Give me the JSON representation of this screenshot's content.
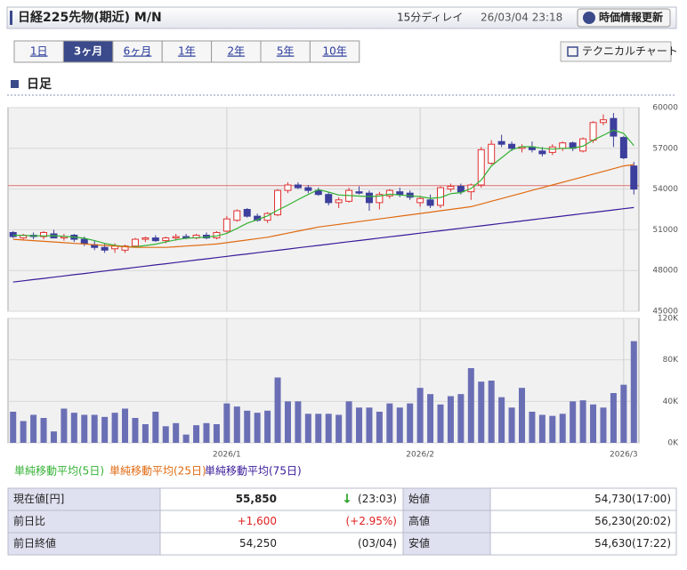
{
  "header": {
    "title": "日経225先物(期近) M/N",
    "delay": "15分ディレイ",
    "timestamp": "26/03/04 23:18",
    "refresh": "時価情報更新"
  },
  "tabs": [
    {
      "label": "1日",
      "active": false
    },
    {
      "label": "3ヶ月",
      "active": true
    },
    {
      "label": "6ヶ月",
      "active": false
    },
    {
      "label": "1年",
      "active": false
    },
    {
      "label": "2年",
      "active": false
    },
    {
      "label": "5年",
      "active": false
    },
    {
      "label": "10年",
      "active": false
    }
  ],
  "technical_button": "テクニカルチャート",
  "section_title": "日足",
  "chart_data": [
    {
      "type": "candlestick",
      "open": [
        50800,
        50400,
        50600,
        50500,
        50700,
        50400,
        50600,
        50300,
        49900,
        49700,
        49600,
        49500,
        49800,
        50300,
        50400,
        50200,
        50400,
        50500,
        50400,
        50600,
        50400,
        50900,
        51700,
        52500,
        52000,
        51700,
        52100,
        53900,
        54300,
        54100,
        53900,
        53600,
        53000,
        53100,
        53800,
        53700,
        53000,
        53500,
        53800,
        53700,
        53000,
        53200,
        52800,
        54000,
        54200,
        53800,
        54300,
        55900,
        57500,
        57300,
        57000,
        57100,
        56800,
        56700,
        57000,
        57400,
        56800,
        57600,
        58900,
        59200,
        57800,
        55700
      ],
      "high": [
        50900,
        50700,
        50800,
        50900,
        51000,
        50700,
        50700,
        50500,
        50200,
        50000,
        50000,
        49900,
        50400,
        50500,
        50600,
        50500,
        50700,
        50700,
        50700,
        50800,
        50900,
        52000,
        52500,
        52600,
        52200,
        52300,
        54000,
        54500,
        54500,
        54300,
        54100,
        53800,
        53400,
        54100,
        54200,
        53900,
        53800,
        54000,
        54100,
        53900,
        53500,
        53600,
        54200,
        54400,
        54400,
        54400,
        57100,
        57600,
        58000,
        57500,
        57300,
        57500,
        57100,
        57300,
        57500,
        57500,
        57800,
        59000,
        59500,
        59600,
        57900,
        56000
      ],
      "low": [
        50400,
        50200,
        50300,
        50300,
        50400,
        50200,
        50100,
        49800,
        49500,
        49300,
        49300,
        49300,
        49700,
        50100,
        50100,
        50000,
        50200,
        50300,
        50300,
        50300,
        50300,
        50800,
        51600,
        51900,
        51600,
        51500,
        52000,
        53700,
        54000,
        53700,
        53500,
        52800,
        52600,
        53000,
        53600,
        52400,
        52500,
        53300,
        53400,
        53200,
        52700,
        52600,
        52600,
        53800,
        53600,
        53200,
        54100,
        55800,
        57100,
        56800,
        56700,
        56700,
        56400,
        56500,
        56800,
        56800,
        56700,
        57400,
        58700,
        57100,
        56200,
        53600
      ],
      "close": [
        50500,
        50600,
        50500,
        50800,
        50400,
        50500,
        50300,
        50000,
        49700,
        49500,
        49800,
        49800,
        50300,
        50400,
        50200,
        50400,
        50500,
        50400,
        50600,
        50400,
        50800,
        51800,
        52400,
        52000,
        51700,
        52200,
        53900,
        54300,
        54100,
        53900,
        53600,
        53000,
        53200,
        53900,
        53700,
        53000,
        53600,
        53900,
        53600,
        53400,
        53300,
        52800,
        54100,
        54200,
        53800,
        54300,
        56900,
        57300,
        57300,
        57000,
        57100,
        56900,
        56600,
        57100,
        57400,
        57000,
        57700,
        58900,
        59100,
        57900,
        56300,
        54000
      ],
      "up_color": "#e03030",
      "down_color": "#3c3f9c",
      "series": [
        {
          "name": "単純移動平均(5日)",
          "color": "#33b233",
          "values": [
            50600,
            50580,
            50560,
            50550,
            50560,
            50520,
            50460,
            50380,
            50200,
            50000,
            49860,
            49760,
            49740,
            49840,
            49940,
            50100,
            50260,
            50380,
            50420,
            50460,
            50540,
            50740,
            51100,
            51480,
            51740,
            52020,
            52440,
            52820,
            53220,
            53600,
            53960,
            53780,
            53560,
            53520,
            53480,
            53450,
            53480,
            53620,
            53560,
            53500,
            53440,
            53320,
            53380,
            53660,
            53740,
            54040,
            54660,
            55700,
            56300,
            56900,
            57120,
            57120,
            57000,
            56940,
            57000,
            57020,
            57160,
            57600,
            57960,
            58340,
            58100,
            57200
          ]
        },
        {
          "name": "単純移動平均(25日)",
          "color": "#e06a10",
          "values": [
            50300,
            50250,
            50200,
            50150,
            50100,
            50050,
            50000,
            49950,
            49900,
            49850,
            49800,
            49750,
            49700,
            49700,
            49700,
            49700,
            49750,
            49800,
            49850,
            49900,
            49950,
            50050,
            50150,
            50250,
            50350,
            50450,
            50600,
            50750,
            50900,
            51050,
            51200,
            51300,
            51400,
            51500,
            51600,
            51700,
            51800,
            51900,
            52000,
            52100,
            52200,
            52300,
            52400,
            52500,
            52600,
            52700,
            52900,
            53100,
            53300,
            53500,
            53700,
            53900,
            54100,
            54300,
            54500,
            54700,
            54900,
            55100,
            55300,
            55500,
            55700,
            55800
          ]
        },
        {
          "name": "単純移動平均(75日)",
          "color": "#3a1a9a",
          "values": [
            47150,
            47240,
            47330,
            47420,
            47510,
            47600,
            47690,
            47780,
            47870,
            47960,
            48050,
            48140,
            48230,
            48320,
            48410,
            48500,
            48590,
            48680,
            48770,
            48860,
            48950,
            49040,
            49130,
            49220,
            49310,
            49400,
            49490,
            49580,
            49670,
            49760,
            49850,
            49940,
            50030,
            50120,
            50210,
            50300,
            50390,
            50480,
            50570,
            50660,
            50750,
            50840,
            50930,
            51020,
            51110,
            51200,
            51290,
            51380,
            51470,
            51560,
            51650,
            51740,
            51830,
            51920,
            52010,
            52100,
            52190,
            52280,
            52370,
            52460,
            52550,
            52640
          ]
        }
      ],
      "reference_line": {
        "value": 54250,
        "color": "#e07070"
      },
      "ylim": [
        45000,
        60000
      ],
      "yticks": [
        45000,
        48000,
        51000,
        54000,
        57000,
        60000
      ],
      "grid": true
    },
    {
      "type": "bar",
      "color": "#6a6fb5",
      "categories": [
        null,
        null,
        null,
        null,
        null,
        null,
        null,
        null,
        null,
        null,
        null,
        null,
        null,
        null,
        null,
        null,
        null,
        null,
        null,
        null,
        null,
        "2026/1",
        null,
        null,
        null,
        null,
        null,
        null,
        null,
        null,
        null,
        null,
        null,
        null,
        null,
        null,
        null,
        null,
        null,
        null,
        "2026/2",
        null,
        null,
        null,
        null,
        null,
        null,
        null,
        null,
        null,
        null,
        null,
        null,
        null,
        null,
        null,
        null,
        null,
        null,
        null,
        "2026/3",
        null
      ],
      "values": [
        30000,
        21000,
        27000,
        24000,
        11000,
        33000,
        29000,
        27000,
        27000,
        25000,
        29000,
        33000,
        24000,
        18000,
        30000,
        16000,
        19000,
        8000,
        17000,
        19000,
        18000,
        38000,
        35000,
        31000,
        29000,
        31000,
        63000,
        40000,
        40000,
        28000,
        28000,
        28000,
        27000,
        40000,
        34000,
        34000,
        30000,
        38000,
        34000,
        38000,
        53000,
        47000,
        37000,
        45000,
        47000,
        72000,
        59000,
        60000,
        44000,
        34000,
        53000,
        30000,
        27000,
        26000,
        28000,
        40000,
        41000,
        37000,
        34000,
        48000,
        56000,
        98000
      ],
      "ylim": [
        0,
        120000
      ],
      "yticks": [
        {
          "value": 0,
          "label": "0K"
        },
        {
          "value": 40000,
          "label": "40K"
        },
        {
          "value": 80000,
          "label": "80K"
        },
        {
          "value": 120000,
          "label": "120K"
        }
      ],
      "grid": true
    }
  ],
  "quote_table": {
    "rows": [
      {
        "label": "現在値[円]",
        "value": "55,850",
        "arrow": "↓",
        "note": "(23:03)",
        "label2": "始値",
        "value2": "54,730(17:00)"
      },
      {
        "label": "前日比",
        "value": "+1,600",
        "note": "(+2.95%)",
        "label2": "高値",
        "value2": "56,230(20:02)"
      },
      {
        "label": "前日終値",
        "value": "54,250",
        "note": "(03/04)",
        "label2": "安値",
        "value2": "54,630(17:22)"
      }
    ]
  }
}
